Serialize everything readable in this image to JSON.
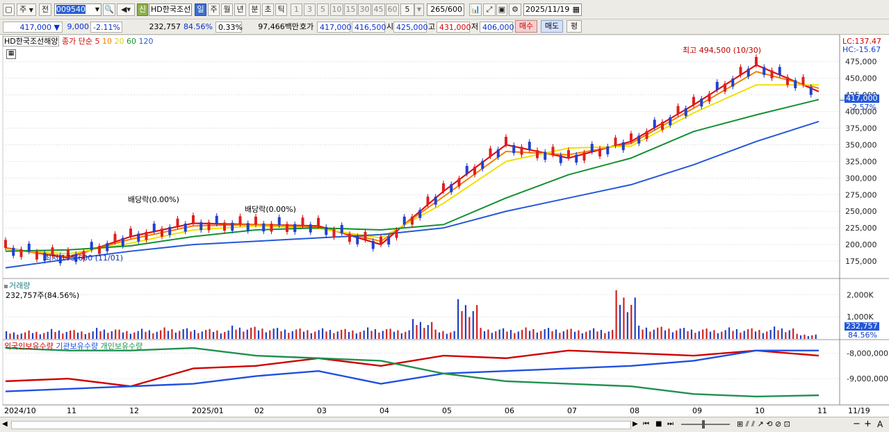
{
  "toolbar1": {
    "market": "주",
    "range": "전",
    "code": "009540",
    "new_badge": "신",
    "stock_name": "HD한국조선",
    "periods": [
      "일",
      "주",
      "월",
      "년",
      "분",
      "초",
      "틱"
    ],
    "selected_period": "일",
    "numbers": [
      "1",
      "3",
      "5",
      "10",
      "15",
      "30",
      "45",
      "60"
    ],
    "interval": "5",
    "count": "265",
    "total": "/600",
    "date": "2025/11/19"
  },
  "quote": {
    "price": "417,000",
    "arrow": "▼",
    "change": "9,000",
    "change_pct": "-2.11%",
    "volume": "232,757",
    "volume_ratio": "84.56%",
    "turnover": "0.33%",
    "amount": "97,466백만",
    "bid_label": "호가",
    "bid": "417,000",
    "ask": "416,500",
    "open_label": "시",
    "open": "425,000",
    "high_label": "고",
    "high": "431,000",
    "low_label": "저",
    "low": "406,000",
    "buy_btn": "매수",
    "sell_btn": "매도",
    "avg_btn": "평"
  },
  "price_panel": {
    "name": "HD한국조선해양",
    "ma_label": "종가 단순",
    "ma_periods": [
      "5",
      "10",
      "20",
      "60",
      "120"
    ],
    "ma_colors": [
      "#e01010",
      "#f08000",
      "#f0e000",
      "#139030",
      "#2458d8"
    ],
    "lc": "LC:137.47",
    "hc": "HC:-15.67",
    "current_tag": "417,000",
    "current_pct": "-2.57%",
    "high_annot": "최고 494,500 (10/30)",
    "low_annot": "최저 175,600 (11/01)",
    "div1": "배당락(0.00%)",
    "div2": "배당락(0.00%)"
  },
  "volume_panel": {
    "title": "거래량",
    "value_label": "232,757주(84.56%)",
    "current_tag": "232,757",
    "current_pct": "84.56%"
  },
  "holdings_panel": {
    "series": [
      "외국인보유수량",
      "기관보유수량",
      "개인보유수량"
    ],
    "series_colors": [
      "#d00000",
      "#2050e0",
      "#209050"
    ]
  },
  "x_labels": [
    "2024/10",
    "11",
    "12",
    "2025/01",
    "02",
    "03",
    "04",
    "05",
    "06",
    "07",
    "08",
    "09",
    "10",
    "11"
  ],
  "x_right": "11/19",
  "chart_data": [
    {
      "type": "line",
      "title": "HD한국조선해양",
      "y_ticks": [
        175000,
        200000,
        225000,
        250000,
        275000,
        300000,
        325000,
        350000,
        375000,
        400000,
        425000,
        450000,
        475000
      ],
      "ylim": [
        150000,
        505000
      ],
      "x": [
        "2024/10",
        "11",
        "12",
        "2025/01",
        "02",
        "03",
        "04",
        "05",
        "06",
        "07",
        "08",
        "09",
        "10",
        "11"
      ],
      "series": [
        {
          "name": "5",
          "values": [
            195000,
            180000,
            212000,
            232000,
            230000,
            228000,
            200000,
            280000,
            350000,
            330000,
            355000,
            410000,
            470000,
            430000
          ]
        },
        {
          "name": "10",
          "values": [
            194000,
            182000,
            208000,
            228000,
            230000,
            226000,
            205000,
            272000,
            340000,
            335000,
            352000,
            405000,
            460000,
            435000
          ]
        },
        {
          "name": "20",
          "values": [
            193000,
            186000,
            202000,
            222000,
            228000,
            224000,
            210000,
            262000,
            325000,
            345000,
            348000,
            398000,
            440000,
            440000
          ]
        },
        {
          "name": "60",
          "values": [
            190000,
            192000,
            198000,
            212000,
            222000,
            225000,
            222000,
            230000,
            270000,
            305000,
            330000,
            370000,
            395000,
            418000
          ]
        },
        {
          "name": "120",
          "values": [
            165000,
            178000,
            190000,
            200000,
            205000,
            210000,
            215000,
            225000,
            250000,
            270000,
            290000,
            320000,
            355000,
            385000
          ]
        }
      ]
    },
    {
      "type": "bar",
      "title": "거래량",
      "y_ticks": [
        1000000,
        2000000
      ],
      "tick_labels": [
        "1,000K",
        "2,000K"
      ],
      "ylim": [
        0,
        2700000
      ],
      "values": [
        350000,
        380000,
        450000,
        400000,
        500000,
        420000,
        460000,
        520000,
        480000,
        450000,
        600000,
        550000,
        500000,
        470000,
        480000,
        450000,
        520000,
        460000,
        900000,
        420000,
        1800000,
        500000,
        480000,
        520000,
        500000,
        460000,
        480000,
        2200000,
        600000,
        550000,
        500000,
        470000,
        520000,
        480000,
        560000,
        232757
      ]
    },
    {
      "type": "line",
      "title": "보유수량",
      "y_ticks": [
        -8000000,
        -9000000
      ],
      "tick_labels": [
        "-8,000,000",
        "-9,000,000"
      ],
      "ylim": [
        -10000000,
        -7500000
      ]
    }
  ],
  "bottom_bar": {
    "zoom_in": "+",
    "zoom_out": "−",
    "font": "A"
  }
}
